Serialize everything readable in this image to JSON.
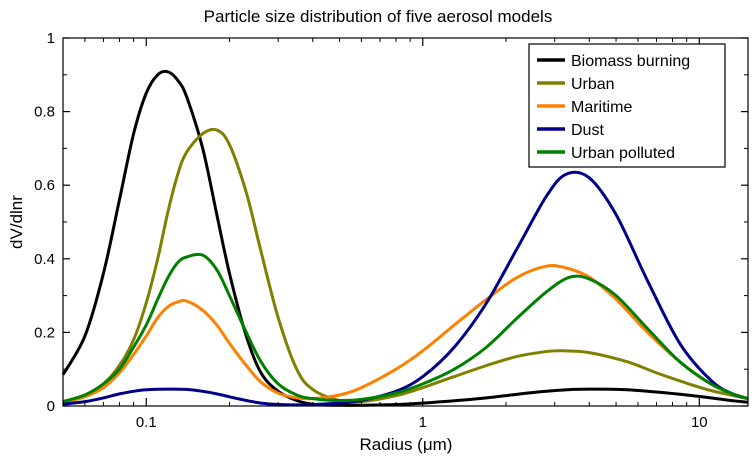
{
  "chart_data": {
    "type": "line",
    "title": "Particle size distribution of five aerosol models",
    "xlabel": "Radius (μm)",
    "ylabel": "dV/dlnr",
    "xscale": "log",
    "xlim": [
      0.05,
      15
    ],
    "ylim": [
      0,
      1
    ],
    "x_ticks": [
      0.1,
      1,
      10
    ],
    "x_tick_labels": [
      "0.1",
      "1",
      "10"
    ],
    "y_ticks": [
      0,
      0.2,
      0.4,
      0.6,
      0.8,
      1
    ],
    "y_tick_labels": [
      "0",
      "0.2",
      "0.4",
      "0.6",
      "0.8",
      "1"
    ],
    "grid": false,
    "legend_position": "top-right",
    "series": [
      {
        "name": "Biomass burning",
        "color": "#000000",
        "x": [
          0.05,
          0.06,
          0.07,
          0.08,
          0.09,
          0.1,
          0.11,
          0.12,
          0.13,
          0.14,
          0.16,
          0.18,
          0.2,
          0.23,
          0.26,
          0.3,
          0.35,
          0.4,
          0.5,
          0.6,
          0.8,
          1.0,
          1.3,
          1.7,
          2.2,
          2.8,
          3.5,
          4.2,
          5.5,
          7,
          9,
          11,
          13,
          15
        ],
        "y": [
          0.085,
          0.19,
          0.36,
          0.56,
          0.74,
          0.85,
          0.9,
          0.908,
          0.885,
          0.84,
          0.7,
          0.52,
          0.36,
          0.19,
          0.09,
          0.04,
          0.015,
          0.005,
          0.002,
          0.002,
          0.004,
          0.008,
          0.014,
          0.022,
          0.032,
          0.04,
          0.045,
          0.046,
          0.044,
          0.038,
          0.03,
          0.022,
          0.015,
          0.01
        ]
      },
      {
        "name": "Urban",
        "color": "#808000",
        "x": [
          0.05,
          0.06,
          0.07,
          0.08,
          0.09,
          0.1,
          0.11,
          0.12,
          0.13,
          0.14,
          0.16,
          0.18,
          0.2,
          0.23,
          0.26,
          0.3,
          0.35,
          0.4,
          0.5,
          0.6,
          0.8,
          1.0,
          1.3,
          1.7,
          2.2,
          2.8,
          3.2,
          4.0,
          5.5,
          7,
          9,
          11,
          13,
          15
        ],
        "y": [
          0.012,
          0.03,
          0.06,
          0.11,
          0.18,
          0.28,
          0.4,
          0.53,
          0.63,
          0.69,
          0.74,
          0.75,
          0.71,
          0.58,
          0.42,
          0.24,
          0.1,
          0.045,
          0.015,
          0.012,
          0.028,
          0.05,
          0.08,
          0.11,
          0.135,
          0.148,
          0.15,
          0.145,
          0.12,
          0.09,
          0.062,
          0.042,
          0.03,
          0.02
        ]
      },
      {
        "name": "Maritime",
        "color": "#ff8000",
        "x": [
          0.05,
          0.06,
          0.07,
          0.08,
          0.09,
          0.1,
          0.11,
          0.12,
          0.13,
          0.14,
          0.16,
          0.18,
          0.2,
          0.23,
          0.26,
          0.3,
          0.35,
          0.4,
          0.5,
          0.6,
          0.8,
          1.0,
          1.3,
          1.7,
          2.2,
          2.8,
          3.3,
          4.0,
          5.0,
          6.5,
          8.5,
          11,
          13,
          15
        ],
        "y": [
          0.01,
          0.025,
          0.05,
          0.09,
          0.14,
          0.19,
          0.24,
          0.27,
          0.283,
          0.285,
          0.26,
          0.22,
          0.17,
          0.11,
          0.065,
          0.035,
          0.022,
          0.02,
          0.03,
          0.05,
          0.1,
          0.15,
          0.22,
          0.29,
          0.35,
          0.38,
          0.375,
          0.35,
          0.29,
          0.2,
          0.12,
          0.06,
          0.035,
          0.02
        ]
      },
      {
        "name": "Dust",
        "color": "#00008b",
        "x": [
          0.05,
          0.06,
          0.07,
          0.08,
          0.09,
          0.1,
          0.12,
          0.14,
          0.16,
          0.18,
          0.2,
          0.23,
          0.26,
          0.3,
          0.35,
          0.4,
          0.5,
          0.6,
          0.8,
          1.0,
          1.3,
          1.7,
          2.2,
          2.8,
          3.3,
          4.0,
          5.0,
          6.5,
          8.5,
          11,
          13,
          15
        ],
        "y": [
          0.005,
          0.012,
          0.022,
          0.033,
          0.04,
          0.044,
          0.046,
          0.045,
          0.04,
          0.033,
          0.025,
          0.015,
          0.008,
          0.004,
          0.003,
          0.004,
          0.008,
          0.015,
          0.04,
          0.08,
          0.16,
          0.28,
          0.43,
          0.57,
          0.63,
          0.62,
          0.52,
          0.34,
          0.17,
          0.07,
          0.035,
          0.02
        ]
      },
      {
        "name": "Urban polluted",
        "color": "#008000",
        "x": [
          0.05,
          0.06,
          0.07,
          0.08,
          0.09,
          0.1,
          0.11,
          0.12,
          0.13,
          0.14,
          0.16,
          0.18,
          0.2,
          0.23,
          0.26,
          0.3,
          0.35,
          0.4,
          0.5,
          0.6,
          0.8,
          1.0,
          1.3,
          1.7,
          2.2,
          2.8,
          3.4,
          4.0,
          5.0,
          6.5,
          8.5,
          11,
          13,
          15
        ],
        "y": [
          0.012,
          0.03,
          0.06,
          0.1,
          0.16,
          0.22,
          0.29,
          0.35,
          0.39,
          0.405,
          0.41,
          0.37,
          0.3,
          0.2,
          0.12,
          0.06,
          0.03,
          0.02,
          0.015,
          0.018,
          0.035,
          0.06,
          0.1,
          0.16,
          0.24,
          0.31,
          0.35,
          0.345,
          0.3,
          0.21,
          0.12,
          0.06,
          0.035,
          0.02
        ]
      }
    ]
  }
}
